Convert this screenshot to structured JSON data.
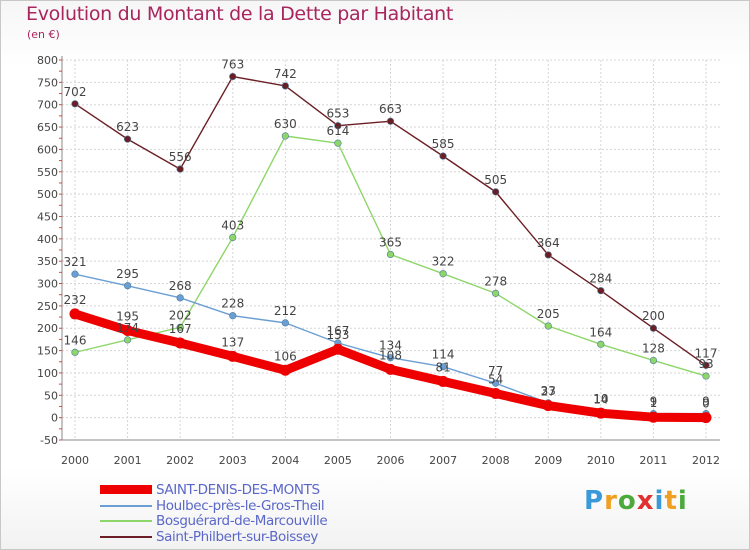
{
  "header": {
    "title": "Evolution du Montant de la Dette par Habitant",
    "subtitle": "(en €)"
  },
  "brand": {
    "letters": [
      "P",
      "r",
      "o",
      "x",
      "i",
      "t",
      "i"
    ],
    "colors": [
      "#3a9ad9",
      "#f0a020",
      "#4caa3c",
      "#e03030",
      "#3a9ad9",
      "#f0a020",
      "#4caa3c"
    ]
  },
  "chart_data": {
    "type": "line",
    "title": "Evolution du Montant de la Dette par Habitant",
    "subtitle": "(en €)",
    "xlabel": "",
    "ylabel": "",
    "x": [
      "2000",
      "2001",
      "2002",
      "2003",
      "2004",
      "2005",
      "2006",
      "2007",
      "2008",
      "2009",
      "2010",
      "2011",
      "2012"
    ],
    "ylim": [
      -50,
      800
    ],
    "yticks": [
      "800",
      "750",
      "700",
      "650",
      "600",
      "550",
      "500",
      "450",
      "400",
      "350",
      "300",
      "250",
      "200",
      "150",
      "100",
      "50",
      "0",
      "-50"
    ],
    "grid": true,
    "legend_position": "bottom-left",
    "series": [
      {
        "name": "Saint-Philbert-sur-Boissey",
        "color": "#6b1f24",
        "values": [
          702,
          623,
          556,
          763,
          742,
          653,
          663,
          585,
          505,
          364,
          284,
          200,
          117
        ],
        "labels": [
          "702",
          "623",
          "556",
          "763",
          "742",
          "653",
          "663",
          "585",
          "505",
          "364",
          "284",
          "200",
          "117"
        ]
      },
      {
        "name": "Bosguérard-de-Marcouville",
        "color": "#8fd66a",
        "values": [
          146,
          174,
          202,
          403,
          630,
          614,
          365,
          322,
          278,
          205,
          164,
          128,
          93
        ],
        "labels": [
          "146",
          "174",
          "202",
          "403",
          "630",
          "614",
          "365",
          "322",
          "278",
          "205",
          "164",
          "128",
          "93"
        ]
      },
      {
        "name": "Houlbec-près-le-Gros-Theil",
        "color": "#6b9fd4",
        "values": [
          321,
          295,
          268,
          228,
          212,
          167,
          134,
          114,
          77,
          33,
          14,
          9,
          9
        ],
        "labels": [
          "321",
          "295",
          "268",
          "228",
          "212",
          "167",
          "134",
          "114",
          "77",
          "33",
          "14",
          "9",
          "9"
        ]
      },
      {
        "name": "SAINT-DENIS-DES-MONTS",
        "color": "#ee0000",
        "values": [
          232,
          195,
          167,
          137,
          106,
          153,
          108,
          81,
          54,
          27,
          10,
          1,
          0
        ],
        "labels": [
          "232",
          "195",
          "167",
          "137",
          "106",
          "153",
          "108",
          "81",
          "54",
          "27",
          "10",
          "1",
          "0"
        ]
      }
    ]
  }
}
